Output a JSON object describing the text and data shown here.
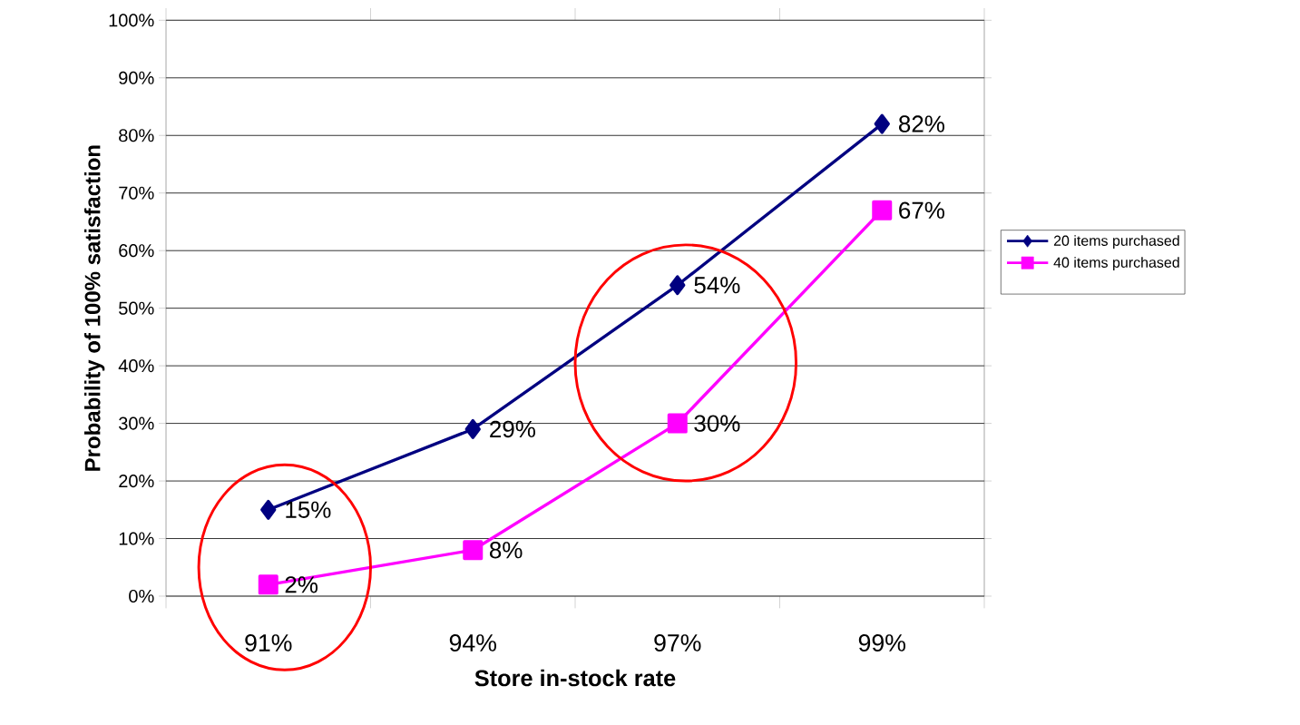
{
  "chart_data": {
    "type": "line",
    "xlabel": "Store in-stock rate",
    "ylabel": "Probability of 100% satisfaction",
    "categories": [
      "91%",
      "94%",
      "97%",
      "99%"
    ],
    "series": [
      {
        "name": "20 items purchased",
        "color": "#000080",
        "marker": "diamond",
        "values": [
          15,
          29,
          54,
          82
        ],
        "value_labels": [
          "15%",
          "29%",
          "54%",
          "82%"
        ]
      },
      {
        "name": "40 items purchased",
        "color": "#ff00ff",
        "marker": "square",
        "values": [
          2,
          8,
          30,
          67
        ],
        "value_labels": [
          "2%",
          "8%",
          "30%",
          "67%"
        ]
      }
    ],
    "ylim": [
      0,
      100
    ],
    "yticks": [
      {
        "value": 0,
        "label": "0%"
      },
      {
        "value": 10,
        "label": "10%"
      },
      {
        "value": 20,
        "label": "20%"
      },
      {
        "value": 30,
        "label": "30%"
      },
      {
        "value": 40,
        "label": "40%"
      },
      {
        "value": 50,
        "label": "50%"
      },
      {
        "value": 60,
        "label": "60%"
      },
      {
        "value": 70,
        "label": "70%"
      },
      {
        "value": 80,
        "label": "80%"
      },
      {
        "value": 90,
        "label": "90%"
      },
      {
        "value": 100,
        "label": "100%"
      }
    ],
    "grid": "y",
    "legend": "right",
    "line_style": "solid"
  }
}
